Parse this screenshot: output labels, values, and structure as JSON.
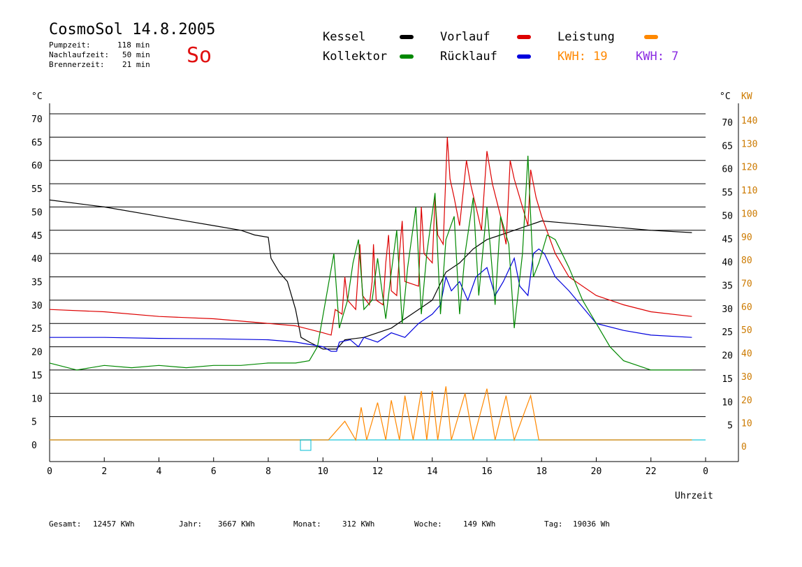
{
  "header": {
    "title": "CosmoSol 14.8.2005",
    "day": "So",
    "stats": [
      {
        "label": "Pumpzeit:",
        "value": "118 min"
      },
      {
        "label": "Nachlaufzeit:",
        "value": "50 min"
      },
      {
        "label": "Brennerzeit:",
        "value": "21 min"
      }
    ]
  },
  "legend": {
    "items": [
      {
        "label": "Kessel",
        "color": "#000000"
      },
      {
        "label": "Vorlauf",
        "color": "#dd0000"
      },
      {
        "label": "Leistung",
        "color": "#ff8800"
      },
      {
        "label": "Kollektor",
        "color": "#008800"
      },
      {
        "label": "Rücklauf",
        "color": "#0000dd"
      }
    ],
    "kwh1": {
      "text": "KWH: 19",
      "color": "#ff8800"
    },
    "kwh2": {
      "text": "KWH: 7",
      "color": "#8a2be2"
    }
  },
  "footer": [
    {
      "label": "Gesamt:",
      "value": "12457 KWh"
    },
    {
      "label": "Jahr:",
      "value": "3667 KWh"
    },
    {
      "label": "Monat:",
      "value": "312 KWh"
    },
    {
      "label": "Woche:",
      "value": "149 KWh"
    },
    {
      "label": "Tag:",
      "value": "19036 Wh"
    }
  ],
  "chart_data": {
    "type": "line",
    "xlabel": "Uhrzeit",
    "ylabel_left": "°C",
    "ylabel_right": "°C",
    "ylabel_right2": "KW",
    "xlim": [
      0,
      24
    ],
    "ylim": [
      0,
      70
    ],
    "x_ticks": [
      "0",
      "2",
      "4",
      "6",
      "8",
      "10",
      "12",
      "14",
      "16",
      "18",
      "20",
      "22",
      "0"
    ],
    "y_ticks": [
      0,
      5,
      10,
      15,
      20,
      25,
      30,
      35,
      40,
      45,
      50,
      55,
      60,
      65,
      70
    ],
    "y_ticks_right": [
      "",
      "5",
      "10",
      "15",
      "20",
      "25",
      "30",
      "35",
      "40",
      "45",
      "50",
      "55",
      "60",
      "65",
      "70"
    ],
    "kw_ticks": [
      "0",
      "10",
      "20",
      "30",
      "40",
      "50",
      "60",
      "70",
      "80",
      "90",
      "100",
      "110",
      "120",
      "130",
      "140"
    ],
    "grid": true,
    "series": [
      {
        "name": "Kessel",
        "color": "#000000",
        "points": [
          [
            0,
            51.5
          ],
          [
            2,
            50
          ],
          [
            4,
            48
          ],
          [
            6,
            46
          ],
          [
            7,
            45
          ],
          [
            7.5,
            44
          ],
          [
            8,
            43.5
          ],
          [
            8.1,
            39
          ],
          [
            8.4,
            36
          ],
          [
            8.7,
            34
          ],
          [
            9.0,
            28
          ],
          [
            9.2,
            22
          ],
          [
            9.5,
            21
          ],
          [
            10,
            19.5
          ],
          [
            10.5,
            19.5
          ],
          [
            10.8,
            21.5
          ],
          [
            11.5,
            22
          ],
          [
            12,
            23
          ],
          [
            12.5,
            24
          ],
          [
            13,
            26
          ],
          [
            13.5,
            28
          ],
          [
            14,
            30
          ],
          [
            14.5,
            36
          ],
          [
            15,
            38
          ],
          [
            15.5,
            41
          ],
          [
            16,
            43
          ],
          [
            16.5,
            44
          ],
          [
            17,
            45
          ],
          [
            17.5,
            46
          ],
          [
            18,
            47
          ],
          [
            19,
            46.5
          ],
          [
            20,
            46
          ],
          [
            21,
            45.5
          ],
          [
            22,
            45
          ],
          [
            23.5,
            44.5
          ]
        ]
      },
      {
        "name": "Vorlauf",
        "color": "#dd0000",
        "points": [
          [
            0,
            28
          ],
          [
            2,
            27.5
          ],
          [
            4,
            26.5
          ],
          [
            6,
            26
          ],
          [
            8,
            25
          ],
          [
            9,
            24.5
          ],
          [
            10,
            23
          ],
          [
            10.3,
            22.5
          ],
          [
            10.45,
            28
          ],
          [
            10.7,
            27
          ],
          [
            10.8,
            35
          ],
          [
            10.9,
            30
          ],
          [
            11.2,
            28
          ],
          [
            11.3,
            37
          ],
          [
            11.35,
            42
          ],
          [
            11.45,
            31
          ],
          [
            11.7,
            29
          ],
          [
            11.8,
            34
          ],
          [
            11.85,
            42
          ],
          [
            11.95,
            30
          ],
          [
            12.2,
            29
          ],
          [
            12.3,
            38
          ],
          [
            12.4,
            44
          ],
          [
            12.5,
            32
          ],
          [
            12.7,
            31
          ],
          [
            12.8,
            40
          ],
          [
            12.9,
            47
          ],
          [
            13,
            34
          ],
          [
            13.5,
            33
          ],
          [
            13.6,
            50
          ],
          [
            13.7,
            40
          ],
          [
            14,
            38
          ],
          [
            14.1,
            52
          ],
          [
            14.2,
            44
          ],
          [
            14.4,
            42
          ],
          [
            14.55,
            65
          ],
          [
            14.65,
            56
          ],
          [
            14.8,
            52
          ],
          [
            15,
            46
          ],
          [
            15.25,
            60
          ],
          [
            15.4,
            55
          ],
          [
            15.6,
            50
          ],
          [
            15.8,
            45
          ],
          [
            16,
            62
          ],
          [
            16.2,
            55
          ],
          [
            16.5,
            48
          ],
          [
            16.7,
            42
          ],
          [
            16.85,
            60
          ],
          [
            17,
            56
          ],
          [
            17.3,
            50
          ],
          [
            17.5,
            46
          ],
          [
            17.6,
            58
          ],
          [
            17.8,
            52
          ],
          [
            18,
            48
          ],
          [
            18.5,
            40
          ],
          [
            19,
            35
          ],
          [
            20,
            31
          ],
          [
            21,
            29
          ],
          [
            22,
            27.5
          ],
          [
            23.5,
            26.5
          ]
        ]
      },
      {
        "name": "Rücklauf",
        "color": "#0000dd",
        "points": [
          [
            0,
            22
          ],
          [
            2,
            22
          ],
          [
            4,
            21.8
          ],
          [
            6,
            21.7
          ],
          [
            8,
            21.5
          ],
          [
            9,
            21
          ],
          [
            10,
            20
          ],
          [
            10.3,
            19
          ],
          [
            10.5,
            19
          ],
          [
            10.6,
            21
          ],
          [
            11,
            21.5
          ],
          [
            11.3,
            20
          ],
          [
            11.5,
            22
          ],
          [
            12,
            21
          ],
          [
            12.5,
            23
          ],
          [
            13,
            22
          ],
          [
            13.5,
            25
          ],
          [
            14,
            27
          ],
          [
            14.3,
            29
          ],
          [
            14.5,
            35
          ],
          [
            14.7,
            32
          ],
          [
            15,
            34
          ],
          [
            15.3,
            30
          ],
          [
            15.6,
            35
          ],
          [
            16,
            37
          ],
          [
            16.3,
            31
          ],
          [
            16.6,
            34
          ],
          [
            17,
            39
          ],
          [
            17.2,
            33
          ],
          [
            17.5,
            31
          ],
          [
            17.7,
            40
          ],
          [
            17.9,
            41
          ],
          [
            18.1,
            40
          ],
          [
            18.5,
            35
          ],
          [
            19,
            32
          ],
          [
            20,
            25
          ],
          [
            21,
            23.5
          ],
          [
            22,
            22.5
          ],
          [
            23.5,
            22
          ]
        ]
      },
      {
        "name": "Kollektor",
        "color": "#008800",
        "points": [
          [
            0,
            16.5
          ],
          [
            1,
            15
          ],
          [
            2,
            16
          ],
          [
            3,
            15.5
          ],
          [
            4,
            16
          ],
          [
            5,
            15.5
          ],
          [
            6,
            16
          ],
          [
            7,
            16
          ],
          [
            8,
            16.5
          ],
          [
            9,
            16.5
          ],
          [
            9.5,
            17
          ],
          [
            9.8,
            20
          ],
          [
            10.1,
            30
          ],
          [
            10.4,
            40
          ],
          [
            10.6,
            24
          ],
          [
            10.9,
            30
          ],
          [
            11.1,
            38
          ],
          [
            11.3,
            43
          ],
          [
            11.5,
            28
          ],
          [
            11.8,
            30
          ],
          [
            12,
            39
          ],
          [
            12.3,
            26
          ],
          [
            12.5,
            36
          ],
          [
            12.7,
            45
          ],
          [
            12.9,
            25
          ],
          [
            13.1,
            37
          ],
          [
            13.4,
            50
          ],
          [
            13.6,
            27
          ],
          [
            13.8,
            40
          ],
          [
            14.1,
            53
          ],
          [
            14.3,
            27
          ],
          [
            14.5,
            43
          ],
          [
            14.8,
            48
          ],
          [
            15,
            27
          ],
          [
            15.2,
            40
          ],
          [
            15.5,
            52
          ],
          [
            15.7,
            31
          ],
          [
            16,
            50
          ],
          [
            16.3,
            29
          ],
          [
            16.5,
            48
          ],
          [
            16.8,
            42
          ],
          [
            17,
            24
          ],
          [
            17.3,
            40
          ],
          [
            17.5,
            61
          ],
          [
            17.7,
            35
          ],
          [
            17.9,
            38
          ],
          [
            18.2,
            44
          ],
          [
            18.5,
            43
          ],
          [
            19,
            37
          ],
          [
            19.5,
            30
          ],
          [
            20,
            25
          ],
          [
            20.5,
            20
          ],
          [
            21,
            17
          ],
          [
            22,
            15
          ],
          [
            23,
            15
          ],
          [
            23.5,
            15
          ]
        ]
      },
      {
        "name": "Leistung",
        "color": "#ff8800",
        "unit": "KW",
        "points": [
          [
            0,
            0
          ],
          [
            10.2,
            0
          ],
          [
            10.8,
            8
          ],
          [
            11.2,
            0
          ],
          [
            11.4,
            14
          ],
          [
            11.6,
            0
          ],
          [
            12,
            16
          ],
          [
            12.3,
            0
          ],
          [
            12.5,
            17
          ],
          [
            12.8,
            0
          ],
          [
            13,
            19
          ],
          [
            13.3,
            0
          ],
          [
            13.6,
            21
          ],
          [
            13.8,
            0
          ],
          [
            14,
            21
          ],
          [
            14.2,
            0
          ],
          [
            14.5,
            23
          ],
          [
            14.7,
            0
          ],
          [
            15.2,
            20
          ],
          [
            15.5,
            0
          ],
          [
            16,
            22
          ],
          [
            16.3,
            0
          ],
          [
            16.7,
            19
          ],
          [
            17,
            0
          ],
          [
            17.6,
            19
          ],
          [
            17.9,
            0
          ],
          [
            23.5,
            0
          ]
        ]
      }
    ]
  }
}
